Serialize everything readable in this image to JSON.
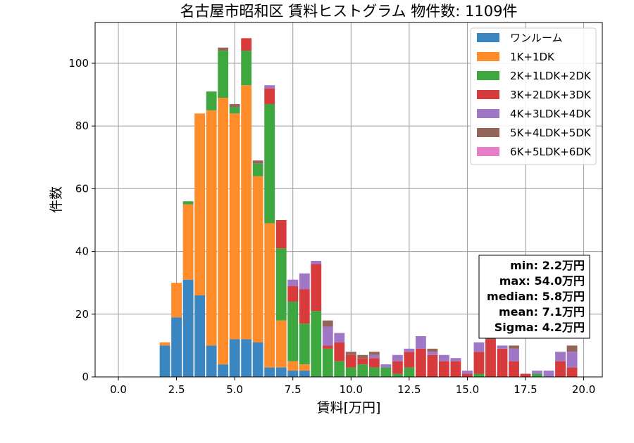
{
  "chart_data": {
    "type": "bar",
    "stacked": true,
    "title": "名古屋市昭和区 賃料ヒストグラム 物件数: 1109件",
    "xlabel": "賃料[万円]",
    "ylabel": "件数",
    "xlim": [
      -1.0,
      20.8
    ],
    "ylim": [
      0,
      113
    ],
    "grid": true,
    "bin_width": 0.5,
    "xticks": [
      0,
      2.5,
      5,
      7.5,
      10,
      12.5,
      15,
      17.5,
      20
    ],
    "xtick_labels": [
      "0.0",
      "2.5",
      "5.0",
      "7.5",
      "10.0",
      "12.5",
      "15.0",
      "17.5",
      "20.0"
    ],
    "yticks": [
      0,
      20,
      40,
      60,
      80,
      100
    ],
    "ytick_labels": [
      "0",
      "20",
      "40",
      "60",
      "80",
      "100"
    ],
    "legend_position": "top-right",
    "x": [
      2.0,
      2.5,
      3.0,
      3.5,
      4.0,
      4.5,
      5.0,
      5.5,
      6.0,
      6.5,
      7.0,
      7.5,
      8.0,
      8.5,
      9.0,
      9.5,
      10.0,
      10.5,
      11.0,
      11.5,
      12.0,
      12.5,
      13.0,
      13.5,
      14.0,
      14.5,
      15.0,
      15.5,
      16.0,
      16.5,
      17.0,
      17.5,
      18.0,
      18.5,
      19.0,
      19.5
    ],
    "series": [
      {
        "name": "ワンルーム",
        "color": "#3a86c0",
        "values": [
          10,
          19,
          31,
          26,
          10,
          4,
          12,
          12,
          11,
          3,
          3,
          2,
          2,
          0,
          0,
          0,
          0,
          0,
          0,
          0,
          0,
          0,
          0,
          0,
          0,
          0,
          0,
          0,
          0,
          0,
          0,
          0,
          0,
          0,
          0,
          0
        ]
      },
      {
        "name": "1K+1DK",
        "color": "#ff8c2a",
        "values": [
          1,
          11,
          24,
          58,
          75,
          85,
          72,
          81,
          53,
          46,
          15,
          3,
          2,
          0,
          0,
          0,
          0,
          0,
          0,
          0,
          0,
          0,
          0,
          0,
          0,
          0,
          0,
          0,
          0,
          0,
          0,
          0,
          0,
          0,
          0,
          0
        ]
      },
      {
        "name": "2K+1LDK+2DK",
        "color": "#3fa73f",
        "values": [
          0,
          0,
          1,
          0,
          6,
          15,
          2,
          11,
          4,
          38,
          23,
          19,
          13,
          21,
          9,
          5,
          3,
          4,
          3,
          3,
          1,
          3,
          0,
          0,
          0,
          0,
          0,
          1,
          0,
          0,
          0,
          0,
          1,
          0,
          0,
          0
        ]
      },
      {
        "name": "3K+2LDK+3DK",
        "color": "#d83b3b",
        "values": [
          0,
          0,
          0,
          0,
          0,
          0,
          0,
          4,
          0,
          5,
          9,
          5,
          11,
          15,
          1,
          6,
          4,
          2,
          3,
          0,
          4,
          5,
          9,
          7,
          5,
          5,
          1,
          7,
          12,
          9,
          5,
          1,
          0,
          0,
          5,
          3
        ]
      },
      {
        "name": "4K+3LDK+4DK",
        "color": "#a077c7",
        "values": [
          0,
          0,
          0,
          0,
          0,
          0,
          0,
          0,
          0,
          1,
          0,
          2,
          5,
          1,
          6,
          3,
          0,
          0,
          1,
          1,
          2,
          1,
          4,
          1,
          2,
          1,
          1,
          3,
          0,
          1,
          4,
          0,
          1,
          2,
          3,
          5
        ]
      },
      {
        "name": "5K+4LDK+5DK",
        "color": "#93665a",
        "values": [
          0,
          0,
          0,
          0,
          0,
          1,
          1,
          0,
          1,
          0,
          0,
          0,
          0,
          0,
          2,
          0,
          1,
          1,
          1,
          0,
          0,
          0,
          0,
          1,
          0,
          0,
          0,
          0,
          1,
          0,
          1,
          0,
          0,
          0,
          0,
          2
        ]
      },
      {
        "name": "6K+5LDK+6DK",
        "color": "#e67fc8",
        "values": [
          0,
          0,
          0,
          0,
          0,
          0,
          0,
          0,
          0,
          0,
          0,
          0,
          0,
          0,
          0,
          0,
          0,
          0,
          0,
          0,
          0,
          0,
          0,
          0,
          0,
          0,
          0,
          0,
          0,
          0,
          0,
          0,
          0,
          0,
          0,
          0
        ]
      }
    ],
    "annotations": [
      "min: 2.2万円",
      "max: 54.0万円",
      "median: 5.8万円",
      "mean: 7.1万円",
      "Sigma: 4.2万円"
    ]
  }
}
